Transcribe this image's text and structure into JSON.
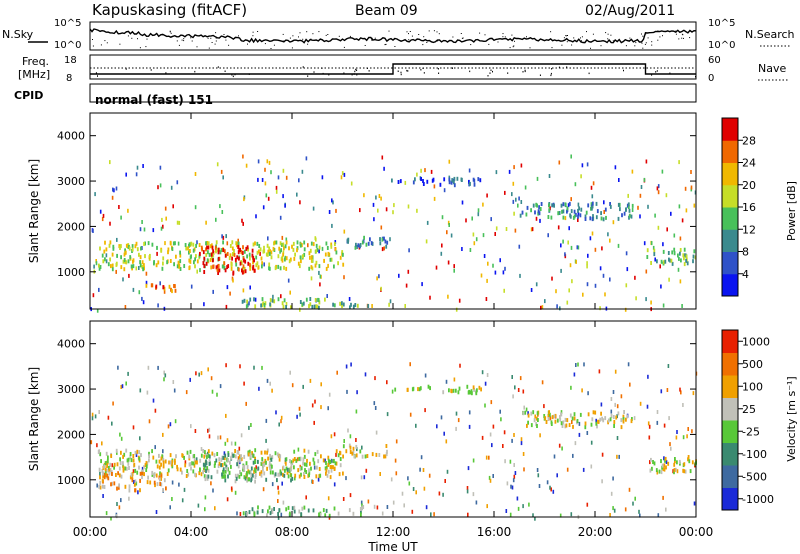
{
  "header": {
    "station": "Kapuskasing (fitACF)",
    "beam": "Beam 09",
    "date": "02/Aug/2011"
  },
  "noise_panel": {
    "left_label": "N.Sky",
    "left_ticks": [
      "10^5",
      "10^0"
    ],
    "right_label": "N.Search",
    "right_ticks": [
      "10^5",
      "10^0"
    ]
  },
  "freq_panel": {
    "left_label_1": "Freq.",
    "left_label_2": "[MHz]",
    "left_ticks": [
      "18",
      "8"
    ],
    "right_label": "Nave",
    "right_ticks": [
      "60",
      "0"
    ],
    "cpid_label": "CPID",
    "mode_text": "normal (fast) 151"
  },
  "time_axis": {
    "label": "Time UT",
    "ticks": [
      "00:00",
      "04:00",
      "08:00",
      "12:00",
      "16:00",
      "20:00",
      "00:00"
    ]
  },
  "chart_data": [
    {
      "type": "heatmap",
      "panel": "power",
      "xlabel": "Time UT",
      "ylabel": "Slant Range [km]",
      "xlim_hours": [
        0,
        24
      ],
      "ylim_km": [
        180,
        4500
      ],
      "yticks": [
        1000,
        2000,
        3000,
        4000
      ],
      "ytick_labels": [
        "1000",
        "2000",
        "3000",
        "4000"
      ],
      "colorbar": {
        "label": "Power [dB]",
        "ticks": [
          "4",
          "8",
          "12",
          "16",
          "20",
          "24",
          "28"
        ],
        "colors": [
          "#0a14f0",
          "#2f52c8",
          "#3a8a8e",
          "#48c05a",
          "#c6de28",
          "#f0b800",
          "#f06800",
          "#e00000"
        ]
      },
      "regions": [
        {
          "t0": 0.3,
          "t1": 10.0,
          "r0": 1100,
          "r1": 1700,
          "level": 4
        },
        {
          "t0": 4.3,
          "t1": 6.5,
          "r0": 1000,
          "r1": 1600,
          "level": 7
        },
        {
          "t0": 2.0,
          "t1": 3.5,
          "r0": 600,
          "r1": 750,
          "level": 6
        },
        {
          "t0": 10.0,
          "t1": 11.8,
          "r0": 1550,
          "r1": 1800,
          "level": 2
        },
        {
          "t0": 11.8,
          "t1": 15.5,
          "r0": 2950,
          "r1": 3100,
          "level": 1
        },
        {
          "t0": 17.0,
          "t1": 21.5,
          "r0": 2200,
          "r1": 2550,
          "level": 2
        },
        {
          "t0": 22.0,
          "t1": 24.0,
          "r0": 1200,
          "r1": 1550,
          "level": 3
        },
        {
          "t0": 6.0,
          "t1": 11.0,
          "r0": 250,
          "r1": 450,
          "level": 3
        }
      ]
    },
    {
      "type": "heatmap",
      "panel": "velocity",
      "xlabel": "Time UT",
      "ylabel": "Slant Range [km]",
      "xlim_hours": [
        0,
        24
      ],
      "ylim_km": [
        180,
        4500
      ],
      "yticks": [
        1000,
        2000,
        3000,
        4000
      ],
      "ytick_labels": [
        "1000",
        "2000",
        "3000",
        "4000"
      ],
      "colorbar": {
        "label": "Velocity [m s⁻¹]",
        "ticks": [
          "1000",
          "500",
          "100",
          "25",
          "-25",
          "-100",
          "-500",
          "-1000"
        ],
        "colors": [
          "#1a2ad8",
          "#3e6aa0",
          "#3a8a70",
          "#58c838",
          "#c0c0b8",
          "#f0a000",
          "#f07000",
          "#e82000"
        ]
      },
      "regions": [
        {
          "t0": 0.3,
          "t1": 10.0,
          "r0": 1100,
          "r1": 1700,
          "level": 4
        },
        {
          "t0": 4.3,
          "t1": 8.0,
          "r0": 1000,
          "r1": 1600,
          "level": 3
        },
        {
          "t0": 0.3,
          "t1": 3.0,
          "r0": 800,
          "r1": 1200,
          "level": 5
        },
        {
          "t0": 10.0,
          "t1": 11.8,
          "r0": 1550,
          "r1": 1800,
          "level": 4
        },
        {
          "t0": 11.8,
          "t1": 15.5,
          "r0": 2950,
          "r1": 3100,
          "level": 4
        },
        {
          "t0": 17.0,
          "t1": 21.5,
          "r0": 2200,
          "r1": 2550,
          "level": 4
        },
        {
          "t0": 22.0,
          "t1": 24.0,
          "r0": 1200,
          "r1": 1550,
          "level": 4
        },
        {
          "t0": 6.0,
          "t1": 11.0,
          "r0": 250,
          "r1": 450,
          "level": 3
        }
      ]
    }
  ]
}
